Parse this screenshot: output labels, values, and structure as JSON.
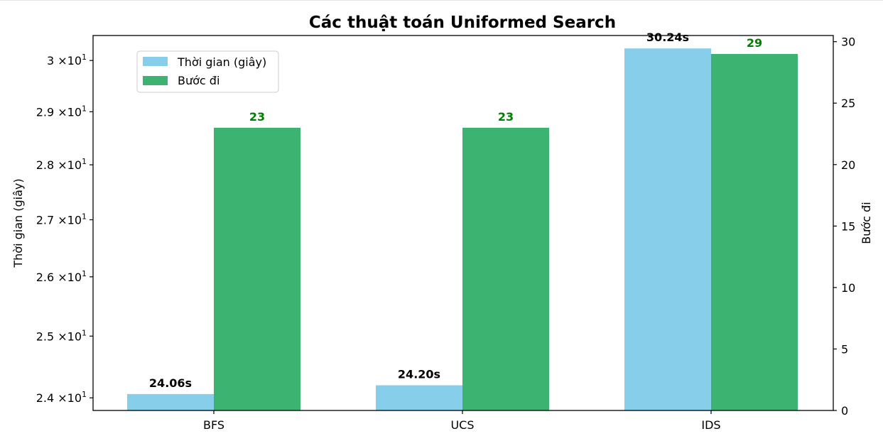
{
  "chart_data": {
    "type": "bar",
    "title": "Các thuật toán Uniformed Search",
    "categories": [
      "BFS",
      "UCS",
      "IDS"
    ],
    "left_axis": {
      "label": "Thời gian (giây)",
      "scale": "log",
      "range": [
        23.8,
        30.5
      ],
      "ticks": [
        {
          "value": 24,
          "mantissa": "2.4"
        },
        {
          "value": 25,
          "mantissa": "2.5"
        },
        {
          "value": 26,
          "mantissa": "2.6"
        },
        {
          "value": 27,
          "mantissa": "2.7"
        },
        {
          "value": 28,
          "mantissa": "2.8"
        },
        {
          "value": 29,
          "mantissa": "2.9"
        },
        {
          "value": 30,
          "mantissa": "3"
        }
      ],
      "tick_suffix": "×10",
      "exponent": "1"
    },
    "right_axis": {
      "label": "Bước đi",
      "scale": "linear",
      "range": [
        0,
        30.5
      ],
      "ticks": [
        0,
        5,
        10,
        15,
        20,
        25,
        30
      ]
    },
    "series": [
      {
        "name": "Thời gian (giây)",
        "axis": "left",
        "color": "#87ceeb",
        "label_color": "#000000",
        "values": [
          24.06,
          24.2,
          30.24
        ],
        "labels": [
          "24.06s",
          "24.20s",
          "30.24s"
        ]
      },
      {
        "name": "Bước đi",
        "axis": "right",
        "color": "#3cb371",
        "label_color": "#008000",
        "values": [
          23,
          23,
          29
        ],
        "labels": [
          "23",
          "23",
          "29"
        ]
      }
    ],
    "legend_position": "upper-left",
    "grid": false
  }
}
